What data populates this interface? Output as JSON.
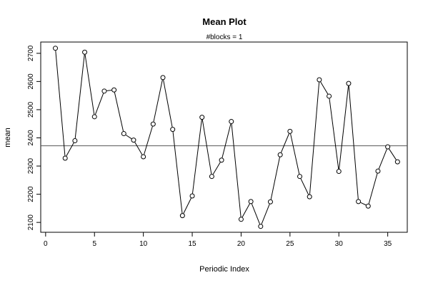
{
  "chart_data": {
    "type": "line",
    "title": "Mean Plot",
    "subtitle": "#blocks =  1",
    "xlabel": "Periodic Index",
    "ylabel": "mean",
    "xlim": [
      -0.5,
      37
    ],
    "ylim": [
      2065,
      2740
    ],
    "x_ticks": [
      0,
      5,
      10,
      15,
      20,
      25,
      30,
      35
    ],
    "y_ticks": [
      2100,
      2200,
      2300,
      2400,
      2500,
      2600,
      2700
    ],
    "reference_line": 2372,
    "grid": false,
    "legend": "none",
    "marker": "open-circle",
    "series": [
      {
        "x": [
          1,
          2,
          3,
          4,
          5,
          6,
          7,
          8,
          9,
          10,
          11,
          12,
          13,
          14,
          15,
          16,
          17,
          18,
          19,
          20,
          21,
          22,
          23,
          24,
          25,
          26,
          27,
          28,
          29,
          30,
          31,
          32,
          33,
          34,
          35,
          36
        ],
        "values": [
          2718,
          2328,
          2390,
          2704,
          2475,
          2566,
          2570,
          2415,
          2392,
          2333,
          2449,
          2614,
          2430,
          2124,
          2194,
          2473,
          2263,
          2321,
          2458,
          2111,
          2174,
          2086,
          2173,
          2340,
          2423,
          2263,
          2191,
          2606,
          2548,
          2281,
          2593,
          2174,
          2158,
          2282,
          2368,
          2315
        ]
      }
    ]
  }
}
